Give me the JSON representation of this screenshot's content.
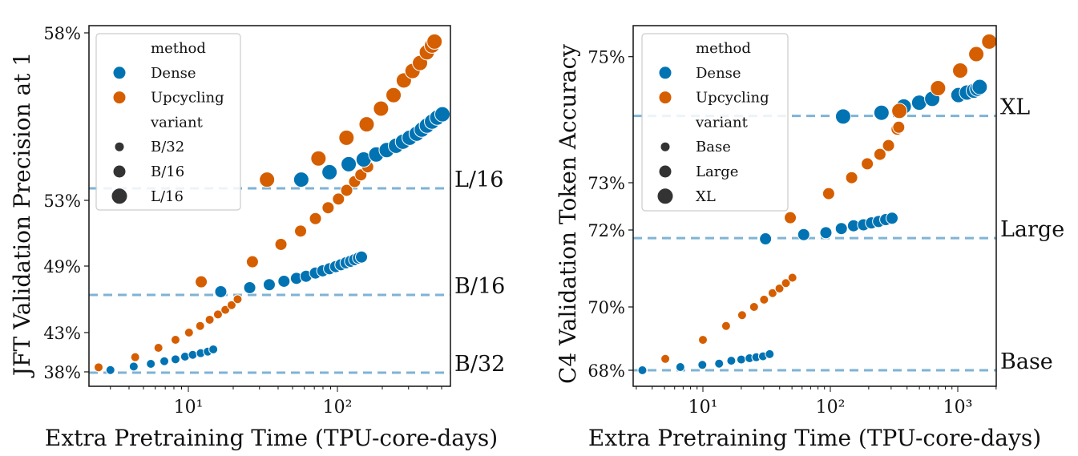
{
  "colors": {
    "Dense": "#0173b2",
    "Upcycling": "#d55e00",
    "reference_line": "#7fb3d5",
    "legend_marker": "#333333"
  },
  "chart_data": [
    {
      "type": "scatter",
      "xlabel": "Extra Pretraining Time (TPU-core-days)",
      "ylabel": "JFT Validation Precision at 1",
      "xscale": "log",
      "xlim": [
        2.15,
        573
      ],
      "xticks": [
        {
          "value": 10,
          "label": "10¹"
        },
        {
          "value": 100,
          "label": "10²"
        }
      ],
      "yticks": [
        {
          "value": 38,
          "label": "38%"
        },
        {
          "value": 43,
          "label": "43%"
        },
        {
          "value": 49,
          "label": "49%"
        },
        {
          "value": 53,
          "label": "53%"
        },
        {
          "value": 58,
          "label": "58%"
        }
      ],
      "grid": false,
      "legend": {
        "placement": "top-left",
        "method_title": "method",
        "methods": [
          "Dense",
          "Upcycling"
        ],
        "variant_title": "variant",
        "variants": [
          "B/32",
          "B/16",
          "L/16"
        ]
      },
      "reference_lines": [
        {
          "label": "L/16",
          "y": 53.36
        },
        {
          "label": "B/16",
          "y": 46.4
        },
        {
          "label": "B/32",
          "y": 37.9
        }
      ],
      "series": [
        {
          "method": "Dense",
          "variant": "B/32",
          "x": [
            3.0,
            4.3,
            5.6,
            6.9,
            8.2,
            9.5,
            10.7,
            12.1,
            13.5,
            14.7
          ],
          "y": [
            38.23,
            38.68,
            39.02,
            39.35,
            39.6,
            39.94,
            40.17,
            40.38,
            40.58,
            40.86
          ]
        },
        {
          "method": "Upcycling",
          "variant": "B/32",
          "x": [
            2.5,
            4.4,
            6.3,
            8.2,
            10.1,
            12.0,
            13.9,
            15.8,
            17.7,
            19.5,
            21.4
          ],
          "y": [
            38.58,
            39.87,
            41.06,
            42.08,
            43.0,
            43.6,
            44.16,
            44.64,
            45.05,
            45.48,
            46.01
          ]
        },
        {
          "method": "Dense",
          "variant": "B/16",
          "x": [
            16.5,
            25.8,
            34.9,
            43.8,
            53.1,
            61.6,
            71.2,
            79.6,
            88.5,
            97.3,
            105.5,
            114.2,
            122.4,
            130.4,
            138.4,
            145
          ],
          "y": [
            46.69,
            47.05,
            47.32,
            47.63,
            47.89,
            48.08,
            48.37,
            48.57,
            48.76,
            48.95,
            49.08,
            49.2,
            49.29,
            49.39,
            49.49,
            49.55
          ]
        },
        {
          "method": "Upcycling",
          "variant": "B/16",
          "x": [
            12.2,
            26.9,
            41.8,
            56.6,
            71.2,
            86.6,
            101.6,
            115.4,
            130.4,
            143.6,
            159.6
          ],
          "y": [
            47.58,
            49.26,
            50.32,
            51.13,
            51.89,
            52.55,
            53.04,
            53.3,
            53.56,
            53.76,
            54.0
          ]
        },
        {
          "method": "Dense",
          "variant": "L/16",
          "x": [
            57.2,
            88.5,
            119,
            150,
            182,
            214,
            247,
            275,
            305,
            340,
            368,
            398,
            431,
            467,
            506
          ],
          "y": [
            53.62,
            53.84,
            54.08,
            54.22,
            54.37,
            54.5,
            54.63,
            54.75,
            54.87,
            54.99,
            55.11,
            55.23,
            55.35,
            55.47,
            55.57
          ]
        },
        {
          "method": "Upcycling",
          "variant": "L/16",
          "x": [
            33.7,
            74.6,
            115,
            157,
            196,
            238,
            279,
            319,
            358,
            398,
            431,
            448
          ],
          "y": [
            53.62,
            54.25,
            54.87,
            55.27,
            55.74,
            56.14,
            56.58,
            56.86,
            57.1,
            57.42,
            57.62,
            57.74
          ]
        }
      ]
    },
    {
      "type": "scatter",
      "xlabel": "Extra Pretraining Time (TPU-core-days)",
      "ylabel": "C4 Validation Token Accuracy",
      "xscale": "log",
      "xlim": [
        2.84,
        2030
      ],
      "xticks": [
        {
          "value": 10,
          "label": "10¹"
        },
        {
          "value": 100,
          "label": "10²"
        },
        {
          "value": 1000,
          "label": "10³"
        }
      ],
      "yticks": [
        {
          "value": 68,
          "label": "68%"
        },
        {
          "value": 70,
          "label": "70%"
        },
        {
          "value": 72,
          "label": "72%"
        },
        {
          "value": 73,
          "label": "73%"
        },
        {
          "value": 75,
          "label": "75%"
        }
      ],
      "grid": false,
      "legend": {
        "placement": "top-left",
        "method_title": "method",
        "methods": [
          "Dense",
          "Upcycling"
        ],
        "variant_title": "variant",
        "variants": [
          "Base",
          "Large",
          "XL"
        ]
      },
      "reference_lines": [
        {
          "label": "XL",
          "y": 74.06
        },
        {
          "label": "Large",
          "y": 71.79
        },
        {
          "label": "Base",
          "y": 68.0
        }
      ],
      "series": [
        {
          "method": "Dense",
          "variant": "Base",
          "x": [
            3.35,
            6.65,
            9.9,
            13.4,
            16.7,
            20,
            23.2,
            26.2,
            29.6,
            33.4
          ],
          "y": [
            68.0,
            68.1,
            68.17,
            68.21,
            68.3,
            68.34,
            68.38,
            68.41,
            68.44,
            68.51
          ]
        },
        {
          "method": "Upcycling",
          "variant": "Base",
          "x": [
            5.07,
            10,
            15.2,
            20.3,
            25.2,
            30.2,
            35.2,
            39.9,
            44.8,
            50.4
          ],
          "y": [
            68.36,
            68.96,
            69.4,
            69.74,
            70.0,
            70.19,
            70.36,
            70.48,
            70.62,
            70.76
          ]
        },
        {
          "method": "Dense",
          "variant": "Large",
          "x": [
            31,
            61.8,
            92.3,
            122,
            152,
            182,
            210,
            239,
            272,
            305
          ],
          "y": [
            71.77,
            71.88,
            71.93,
            72.03,
            72.09,
            72.11,
            72.15,
            72.18,
            72.22,
            72.25
          ]
        },
        {
          "method": "Upcycling",
          "variant": "Large",
          "x": [
            48.5,
            97,
            147,
            195,
            245,
            286,
            334,
            344
          ],
          "y": [
            72.26,
            72.77,
            73.08,
            73.3,
            73.45,
            73.59,
            73.85,
            73.88
          ]
        },
        {
          "method": "Dense",
          "variant": "XL",
          "x": [
            126,
            252,
            377,
            498,
            630,
            1012,
            1180,
            1336,
            1422,
            1486
          ],
          "y": [
            74.05,
            74.11,
            74.21,
            74.27,
            74.33,
            74.39,
            74.43,
            74.46,
            74.49,
            74.52
          ]
        },
        {
          "method": "Upcycling",
          "variant": "XL",
          "x": [
            348,
            700,
            1045,
            1397,
            1766
          ],
          "y": [
            74.14,
            74.5,
            74.78,
            75.04,
            75.24
          ]
        }
      ]
    }
  ]
}
